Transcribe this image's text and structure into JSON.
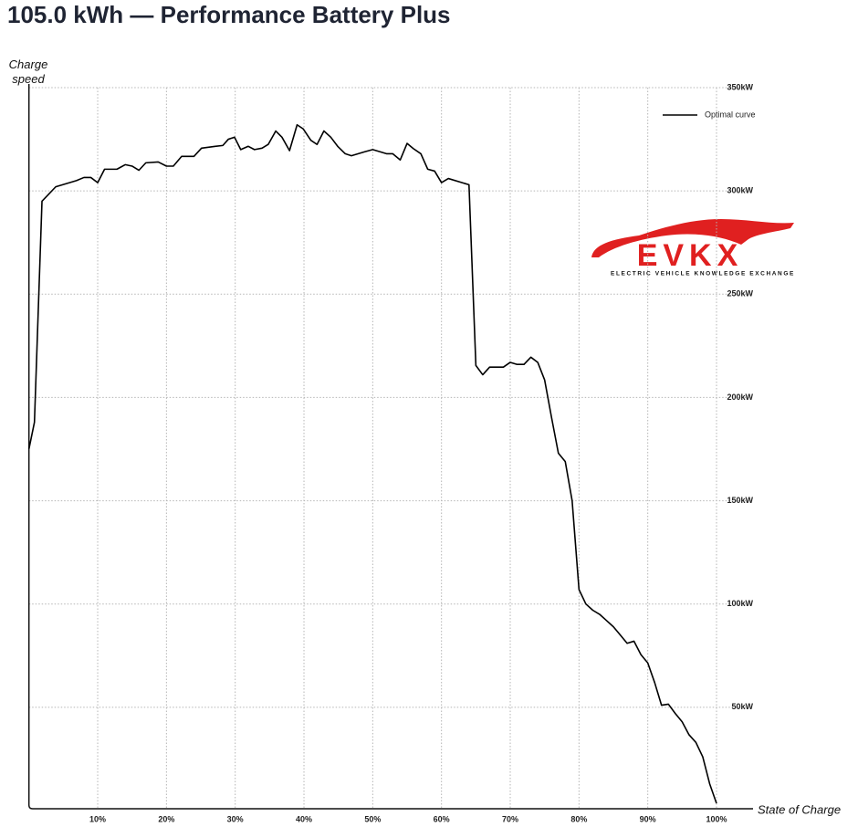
{
  "chart_data": {
    "type": "line",
    "title": "105.0 kWh — Performance Battery Plus",
    "y_label": "Charge speed",
    "x_label": "State of Charge",
    "watermark": "EVKX",
    "watermark_subtitle": "ELECTRIC VEHICLE KNOWLEDGE EXCHANGE",
    "xlim": [
      0,
      100
    ],
    "ylim": [
      0,
      350
    ],
    "xticks": [
      {
        "value": 10,
        "label": "10%"
      },
      {
        "value": 20,
        "label": "20%"
      },
      {
        "value": 30,
        "label": "30%"
      },
      {
        "value": 40,
        "label": "40%"
      },
      {
        "value": 50,
        "label": "50%"
      },
      {
        "value": 60,
        "label": "60%"
      },
      {
        "value": 70,
        "label": "70%"
      },
      {
        "value": 80,
        "label": "80%"
      },
      {
        "value": 90,
        "label": "90%"
      },
      {
        "value": 100,
        "label": "100%"
      }
    ],
    "yticks": [
      {
        "value": 50,
        "label": "50kW"
      },
      {
        "value": 100,
        "label": "100kW"
      },
      {
        "value": 150,
        "label": "150kW"
      },
      {
        "value": 200,
        "label": "200kW"
      },
      {
        "value": 250,
        "label": "250kW"
      },
      {
        "value": 300,
        "label": "300kW"
      },
      {
        "value": 350,
        "label": "350kW"
      }
    ],
    "grid": true,
    "legend": "upper right",
    "x": [
      0,
      0.8,
      1.9,
      3.9,
      6.9,
      8,
      9,
      10,
      11,
      12.8,
      14,
      15,
      16,
      17,
      18.8,
      20,
      21,
      22.2,
      24,
      25.1,
      27.1,
      28.2,
      29,
      29.9,
      30.8,
      31.9,
      32.8,
      33.9,
      34.8,
      35.9,
      36.8,
      37.9,
      39,
      39.9,
      41,
      41.9,
      42.9,
      43.9,
      44.9,
      46,
      46.9,
      48.9,
      50,
      52,
      52.9,
      54,
      55,
      55.9,
      57,
      58,
      59,
      60,
      61,
      64,
      65,
      66,
      67,
      69,
      70,
      71,
      72,
      73,
      74,
      75,
      76,
      77,
      78,
      79,
      80,
      81,
      82,
      83,
      84,
      85,
      86,
      87,
      88,
      89,
      90,
      91,
      92,
      93,
      94,
      95,
      96,
      97,
      98,
      99,
      100
    ],
    "series": [
      {
        "name": "Optimal curve",
        "color": "#000000",
        "values": [
          175,
          188,
          295,
          302,
          305,
          306.5,
          306.5,
          304,
          310.5,
          310.5,
          312.7,
          312,
          310,
          313.6,
          314,
          312,
          312,
          316.7,
          316.7,
          320.7,
          321.6,
          322,
          325,
          326,
          320,
          321.6,
          320,
          320.7,
          322.5,
          329,
          326,
          319.5,
          332,
          330,
          324.5,
          322.5,
          329,
          326,
          321.6,
          318,
          317,
          319,
          320,
          318,
          318,
          315,
          323,
          320.5,
          318,
          310.5,
          309.6,
          304,
          306,
          303,
          215.5,
          211,
          214.7,
          214.7,
          217,
          216,
          216,
          219.5,
          217,
          208.5,
          190.4,
          173,
          169,
          150,
          107,
          100,
          97,
          95,
          92,
          89,
          85,
          81,
          82,
          75.5,
          71.5,
          62,
          51,
          51.5,
          47,
          43,
          36.7,
          33,
          26,
          13,
          3.5
        ]
      }
    ]
  }
}
